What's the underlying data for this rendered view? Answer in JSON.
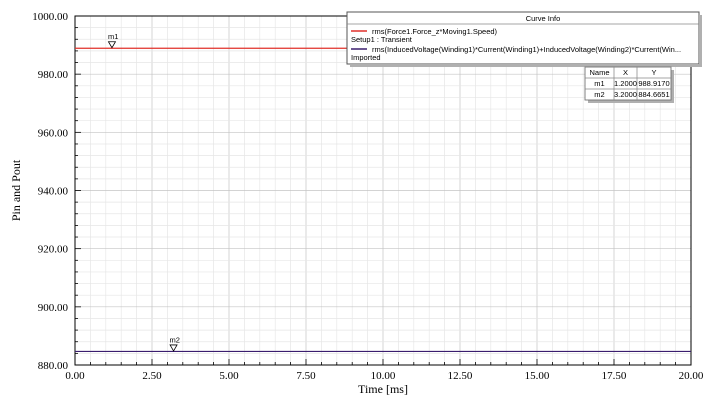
{
  "chart_data": {
    "type": "line",
    "xlabel": "Time [ms]",
    "ylabel": "Pin and Pout",
    "xlim": [
      0,
      20
    ],
    "ylim": [
      880,
      1000
    ],
    "x_ticks": [
      "0.00",
      "2.50",
      "5.00",
      "7.50",
      "10.00",
      "12.50",
      "15.00",
      "17.50",
      "20.00"
    ],
    "y_ticks": [
      "880.00",
      "900.00",
      "920.00",
      "940.00",
      "960.00",
      "980.00",
      "1000.00"
    ],
    "grid": true,
    "series": [
      {
        "name": "rms(Force1.Force_z*Moving1.Speed)",
        "sub": "Setup1 : Transient",
        "color": "#e0302a",
        "x": [
          0,
          20
        ],
        "y": [
          988.917,
          988.917
        ]
      },
      {
        "name": "rms(InducedVoltage(Winding1)*Current(Winding1)+InducedVoltage(Winding2)*Current(Win...",
        "sub": "Imported",
        "color": "#3a1d6e",
        "x": [
          0,
          20
        ],
        "y": [
          884.6651,
          884.6651
        ]
      }
    ],
    "markers": [
      {
        "name": "m1",
        "x": 1.2,
        "y": 988.917
      },
      {
        "name": "m2",
        "x": 3.2,
        "y": 884.6651
      }
    ],
    "legend": {
      "title": "Curve Info",
      "placement": "top-right"
    },
    "marker_table": {
      "headers": [
        "Name",
        "X",
        "Y"
      ],
      "rows": [
        [
          "m1",
          "1.2000",
          "988.9170"
        ],
        [
          "m2",
          "3.2000",
          "884.6651"
        ]
      ]
    }
  }
}
